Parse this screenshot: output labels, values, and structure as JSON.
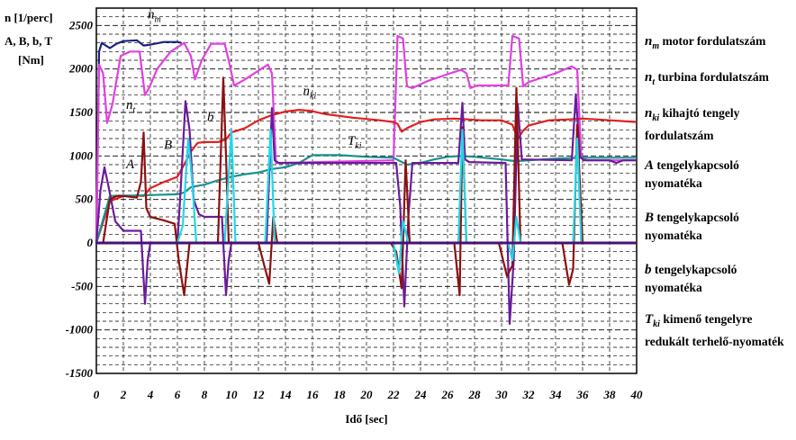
{
  "chart_data": {
    "type": "line",
    "ylabel_lines": [
      "n [1/perc]",
      "A, B, b, T",
      "[Nm]"
    ],
    "xlabel": "Idő [sec]",
    "xlim": [
      0,
      40
    ],
    "ylim": [
      -1500,
      2700
    ],
    "x_ticks": [
      "0",
      "2",
      "4",
      "6",
      "8",
      "10",
      "12",
      "14",
      "16",
      "18",
      "20",
      "22",
      "24",
      "26",
      "28",
      "30",
      "32",
      "34",
      "36",
      "38",
      "40"
    ],
    "y_ticks": [
      "2500",
      "2000",
      "1500",
      "1000",
      "500",
      "0",
      "-500",
      "-1000",
      "-1500"
    ],
    "grid": true,
    "annotations": [
      {
        "sym": "n",
        "sub": "m",
        "x": 3.8,
        "y": 2580
      },
      {
        "sym": "n",
        "sub": "t",
        "x": 2.2,
        "y": 1540
      },
      {
        "sym": "n",
        "sub": "ki",
        "x": 15.3,
        "y": 1700
      },
      {
        "sym": "T",
        "sub": "ki",
        "x": 18.6,
        "y": 1130
      },
      {
        "sym": "b",
        "sub": "",
        "x": 8.2,
        "y": 1400
      },
      {
        "sym": "B",
        "sub": "",
        "x": 5.0,
        "y": 1080
      },
      {
        "sym": "A",
        "sub": "",
        "x": 2.2,
        "y": 860
      }
    ],
    "series": [
      {
        "key": "nm",
        "color": "#1a237e",
        "x": [
          0,
          0.2,
          0.4,
          1.0,
          1.5,
          2.0,
          3.0,
          3.5,
          4.0,
          5.0,
          6.0,
          6.3
        ],
        "y": [
          0,
          2200,
          2300,
          2240,
          2290,
          2320,
          2330,
          2270,
          2280,
          2310,
          2310,
          2300
        ]
      },
      {
        "key": "nt",
        "color": "#e040e0",
        "x": [
          0,
          0.2,
          0.5,
          0.8,
          1.2,
          1.8,
          2.5,
          3.2,
          3.6,
          3.9,
          4.5,
          5.5,
          6.5,
          7.0,
          7.3,
          7.8,
          8.5,
          9.5,
          9.8,
          10.2,
          11.0,
          12.0,
          12.7,
          13.0,
          13.3,
          22.0,
          22.3,
          22.7,
          23.0,
          23.4,
          24.5,
          26.0,
          27.0,
          27.4,
          27.7,
          28.2,
          30.5,
          30.8,
          31.3,
          31.6,
          32.0,
          34.0,
          35.2,
          35.6,
          35.9,
          36.3,
          40.0
        ],
        "y": [
          0,
          2050,
          1950,
          1380,
          1600,
          2150,
          2200,
          2200,
          1700,
          1780,
          2000,
          2200,
          2300,
          2150,
          1880,
          2100,
          2290,
          2290,
          2100,
          1810,
          1880,
          1980,
          2050,
          1950,
          920,
          950,
          2380,
          2350,
          1800,
          1780,
          1860,
          1940,
          1990,
          1950,
          1780,
          1810,
          1810,
          2380,
          2350,
          1800,
          1850,
          1950,
          2030,
          1990,
          1000,
          950,
          950
        ]
      },
      {
        "key": "nki",
        "color": "#e02020",
        "x": [
          0,
          1,
          2,
          3,
          3.5,
          4.0,
          5.0,
          6.0,
          6.5,
          7.0,
          7.5,
          8.0,
          9.0,
          9.6,
          10.0,
          11.0,
          12.0,
          13.0,
          14.0,
          15.0,
          15.8,
          17.0,
          19.0,
          21.0,
          22.0,
          22.3,
          22.6,
          23.0,
          24.0,
          25.0,
          26.5,
          27.5,
          28.5,
          30.0,
          30.8,
          31.2,
          31.6,
          32.0,
          33.5,
          35.0,
          36.0,
          37.0,
          40.0
        ],
        "y": [
          0,
          480,
          540,
          545,
          540,
          630,
          700,
          760,
          900,
          1050,
          1150,
          1160,
          1160,
          1190,
          1270,
          1320,
          1410,
          1470,
          1510,
          1530,
          1520,
          1480,
          1440,
          1410,
          1390,
          1370,
          1280,
          1320,
          1390,
          1420,
          1430,
          1420,
          1410,
          1410,
          1360,
          1200,
          1290,
          1350,
          1410,
          1420,
          1430,
          1420,
          1390
        ]
      },
      {
        "key": "tki",
        "color": "#1a9090",
        "x": [
          0,
          1,
          2,
          3,
          4,
          5,
          6,
          6.5,
          7.0,
          8.0,
          9.0,
          10.0,
          11.0,
          12.0,
          13.0,
          14.0,
          15.0,
          16.0,
          18.0,
          20.0,
          22.0,
          23.0,
          24.0,
          25.0,
          26.0,
          27.0,
          28.0,
          30.0,
          31.0,
          32.0,
          34.0,
          36.0,
          38.0,
          40.0
        ],
        "y": [
          0,
          540,
          545,
          545,
          550,
          555,
          560,
          580,
          640,
          670,
          720,
          760,
          790,
          810,
          850,
          870,
          920,
          1010,
          1010,
          990,
          980,
          900,
          920,
          960,
          990,
          1000,
          990,
          960,
          940,
          950,
          970,
          980,
          980,
          980
        ]
      },
      {
        "key": "A",
        "color": "#6a1b9a",
        "x": [
          0,
          0.3,
          0.6,
          0.9,
          1.4,
          2.0,
          3.3,
          3.6,
          3.8,
          4.0,
          4.2,
          6.0,
          6.2,
          6.6,
          6.9,
          7.2,
          7.6,
          8.0,
          9.3,
          9.6,
          9.8,
          10.0,
          10.2,
          12.6,
          13.0,
          13.2,
          13.5,
          22.2,
          22.5,
          22.8,
          23.1,
          23.4,
          26.8,
          27.1,
          27.3,
          27.6,
          30.3,
          30.6,
          30.9,
          31.2,
          31.5,
          35.2,
          35.5,
          35.8,
          36.1,
          38.0,
          38.5,
          39.0,
          40.0
        ],
        "y": [
          0,
          600,
          870,
          650,
          250,
          140,
          140,
          -700,
          -200,
          0,
          0,
          0,
          500,
          1630,
          1300,
          500,
          330,
          300,
          300,
          -600,
          -200,
          0,
          0,
          0,
          1550,
          950,
          920,
          920,
          420,
          -730,
          300,
          920,
          920,
          1610,
          960,
          930,
          920,
          -930,
          -200,
          1600,
          960,
          950,
          1710,
          990,
          950,
          950,
          920,
          950,
          950
        ]
      },
      {
        "key": "B",
        "color": "#8b1010",
        "x": [
          0,
          0.5,
          1.0,
          1.5,
          2.0,
          3.0,
          3.3,
          3.5,
          3.7,
          4.0,
          5.0,
          5.8,
          6.1,
          6.5,
          6.9,
          7.2,
          9.0,
          9.4,
          9.6,
          9.8,
          10.1,
          12.0,
          12.5,
          12.8,
          13.1,
          13.4,
          21.8,
          22.2,
          22.6,
          22.9,
          23.2,
          26.5,
          26.9,
          27.1,
          27.4,
          29.8,
          30.4,
          30.8,
          31.1,
          31.4,
          34.5,
          35.0,
          35.3,
          35.6,
          36.0,
          40.0
        ],
        "y": [
          0,
          0,
          500,
          540,
          540,
          520,
          700,
          1270,
          400,
          300,
          260,
          220,
          -200,
          -600,
          0,
          0,
          0,
          1900,
          1000,
          0,
          0,
          0,
          -300,
          -470,
          300,
          0,
          0,
          -100,
          -520,
          950,
          0,
          0,
          -600,
          1330,
          0,
          0,
          -380,
          -260,
          1780,
          0,
          0,
          -480,
          -300,
          1360,
          0,
          0
        ]
      },
      {
        "key": "b",
        "color": "#20d8e8",
        "x": [
          0,
          6.0,
          6.4,
          6.8,
          7.1,
          7.4,
          7.8,
          8.5,
          9.5,
          10.0,
          10.3,
          12.5,
          12.9,
          13.2,
          13.5,
          22.0,
          22.4,
          22.7,
          23.1,
          23.5,
          26.8,
          27.1,
          27.4,
          30.5,
          30.8,
          31.1,
          31.4,
          35.3,
          35.6,
          35.9,
          40.0
        ],
        "y": [
          0,
          0,
          200,
          1200,
          700,
          0,
          0,
          0,
          0,
          1300,
          0,
          0,
          1300,
          0,
          0,
          0,
          -350,
          250,
          0,
          0,
          0,
          1300,
          0,
          0,
          -200,
          300,
          0,
          0,
          1200,
          0,
          0
        ]
      },
      {
        "key": "zero",
        "color": "#4a1070",
        "x": [
          0,
          40
        ],
        "y": [
          0,
          0
        ]
      }
    ]
  },
  "legend": [
    {
      "sym": "n",
      "sub": "m",
      "text": "motor fordulatszám"
    },
    {
      "sym": "n",
      "sub": "t",
      "text": "turbina fordulatszám"
    },
    {
      "sym": "n",
      "sub": "ki",
      "text": "kihajtó tengely fordulatszám"
    },
    {
      "sym": "A",
      "sub": "",
      "text": "tengelykapcsoló nyomatéka"
    },
    {
      "sym": "B",
      "sub": "",
      "text": "tengelykapcsoló nyomatéka"
    },
    {
      "sym": "b",
      "sub": "",
      "text": "tengelykapcsoló nyomatéka"
    },
    {
      "sym": "T",
      "sub": "ki",
      "text": "kimenő tengelyre redukált terhelő-nyomaték"
    }
  ]
}
